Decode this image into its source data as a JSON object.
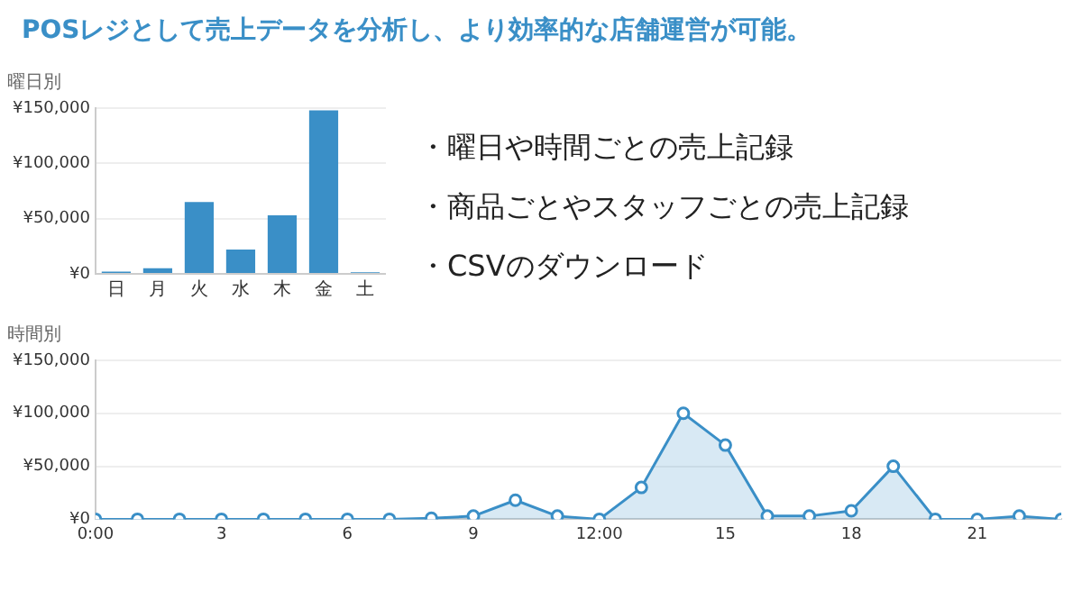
{
  "chart_data": [
    {
      "type": "other",
      "title": "POSレジとして売上データを分析し、より効率的な店舗運営が可能。",
      "annotations": [
        "・曜日や時間ごとの売上記録",
        "・商品ごとやスタッフごとの売上記録",
        "・CSVのダウンロード"
      ]
    },
    {
      "type": "bar",
      "title": "曜日別",
      "categories": [
        "日",
        "月",
        "火",
        "水",
        "木",
        "金",
        "土"
      ],
      "values": [
        2000,
        5000,
        65000,
        22000,
        53000,
        148000,
        1500
      ],
      "color": "#3a8fc7",
      "ylim": [
        0,
        150000
      ],
      "yticks": [
        {
          "value": 0,
          "label": "¥0"
        },
        {
          "value": 50000,
          "label": "¥50,000"
        },
        {
          "value": 100000,
          "label": "¥100,000"
        },
        {
          "value": 150000,
          "label": "¥150,000"
        }
      ],
      "grid": "y",
      "legend": false
    },
    {
      "type": "area",
      "title": "時間別",
      "x": [
        0,
        1,
        2,
        3,
        4,
        5,
        6,
        7,
        8,
        9,
        10,
        11,
        12,
        13,
        14,
        15,
        16,
        17,
        18,
        19,
        20,
        21,
        22,
        23
      ],
      "values": [
        0,
        0,
        0,
        0,
        0,
        0,
        0,
        0,
        1000,
        3000,
        18000,
        3000,
        0,
        30000,
        100000,
        70000,
        3000,
        3000,
        8000,
        50000,
        0,
        0,
        3000,
        0
      ],
      "color": "#3a8fc7",
      "marker": "circle",
      "xlim": [
        0,
        23
      ],
      "xticks": [
        {
          "value": 0,
          "label": "0:00"
        },
        3,
        6,
        9,
        {
          "value": 12,
          "label": "12:00"
        },
        15,
        18,
        21
      ],
      "ylim": [
        0,
        150000
      ],
      "yticks": [
        {
          "value": 0,
          "label": "¥0"
        },
        {
          "value": 50000,
          "label": "¥50,000"
        },
        {
          "value": 100000,
          "label": "¥100,000"
        },
        {
          "value": 150000,
          "label": "¥150,000"
        }
      ],
      "grid": "y",
      "legend": false
    }
  ]
}
